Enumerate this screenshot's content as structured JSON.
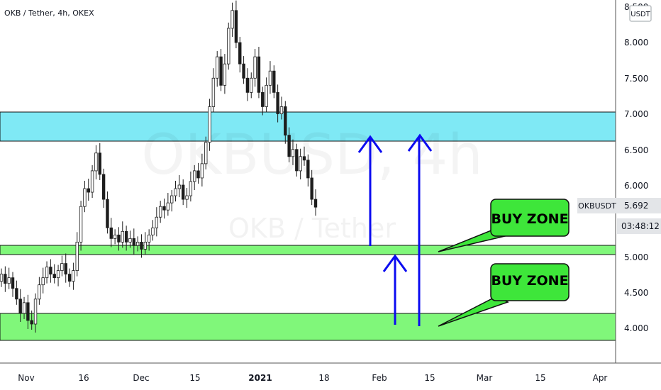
{
  "header": {
    "title": "OKB / Tether, 4h, OKEX"
  },
  "watermark": {
    "symbol": "OKBUSD, 4h",
    "pair": "OKB / Tether"
  },
  "price_axis": {
    "currency": "USDT",
    "top_partial": "8.500",
    "ticks": [
      "8.000",
      "7.500",
      "7.000",
      "6.500",
      "6.000",
      "5.000",
      "4.500",
      "4.000"
    ]
  },
  "price_tag": {
    "symbol": "OKBUSDT",
    "price": "5.692",
    "countdown": "03:48:12"
  },
  "time_axis": {
    "labels": [
      "Nov",
      "16",
      "Dec",
      "15",
      "2021",
      "18",
      "Feb",
      "15",
      "Mar",
      "15",
      "Apr"
    ]
  },
  "annotations": {
    "buy_zone_1": "BUY ZONE",
    "buy_zone_2": "BUY ZONE"
  },
  "colors": {
    "cyan_zone": "#7fe9f5",
    "green_zone": "#80f77a",
    "arrow": "#0b0bf0",
    "callout": "#3ee63a",
    "candle": "#1d1d1d"
  },
  "chart_data": {
    "type": "candlestick",
    "title": "OKB / Tether, 4h, OKEX",
    "ylim": [
      3.75,
      8.6
    ],
    "zones": [
      {
        "kind": "resistance",
        "from": 6.62,
        "to": 7.03
      },
      {
        "kind": "buy",
        "label": "BUY ZONE",
        "from": 5.03,
        "to": 5.16
      },
      {
        "kind": "buy",
        "label": "BUY ZONE",
        "from": 3.82,
        "to": 4.2
      }
    ],
    "series": [
      {
        "values": [
          [
            4.65,
            4.75
          ],
          [
            4.75,
            4.62
          ],
          [
            4.62,
            4.7
          ],
          [
            4.7,
            4.55
          ],
          [
            4.55,
            4.4
          ],
          [
            4.4,
            4.2
          ],
          [
            4.2,
            4.35
          ],
          [
            4.35,
            4.1
          ],
          [
            4.1,
            4.05
          ],
          [
            4.05,
            4.4
          ],
          [
            4.4,
            4.6
          ],
          [
            4.6,
            4.7
          ],
          [
            4.7,
            4.85
          ],
          [
            4.85,
            4.75
          ],
          [
            4.75,
            4.7
          ],
          [
            4.7,
            4.8
          ],
          [
            4.8,
            4.9
          ],
          [
            4.9,
            4.75
          ],
          [
            4.75,
            4.65
          ],
          [
            4.65,
            4.8
          ],
          [
            4.8,
            5.2
          ],
          [
            5.2,
            5.7
          ],
          [
            5.7,
            5.95
          ],
          [
            5.95,
            5.9
          ],
          [
            5.9,
            6.2
          ],
          [
            6.2,
            6.45
          ],
          [
            6.45,
            6.15
          ],
          [
            6.15,
            5.8
          ],
          [
            5.8,
            5.4
          ],
          [
            5.4,
            5.25
          ],
          [
            5.25,
            5.3
          ],
          [
            5.3,
            5.2
          ],
          [
            5.2,
            5.35
          ],
          [
            5.35,
            5.2
          ],
          [
            5.2,
            5.25
          ],
          [
            5.25,
            5.15
          ],
          [
            5.15,
            5.2
          ],
          [
            5.2,
            5.1
          ],
          [
            5.1,
            5.2
          ],
          [
            5.2,
            5.3
          ],
          [
            5.3,
            5.4
          ],
          [
            5.4,
            5.55
          ],
          [
            5.55,
            5.7
          ],
          [
            5.7,
            5.65
          ],
          [
            5.65,
            5.75
          ],
          [
            5.75,
            5.85
          ],
          [
            5.85,
            5.95
          ],
          [
            5.95,
            6.0
          ],
          [
            6.0,
            5.8
          ],
          [
            5.8,
            5.85
          ],
          [
            5.85,
            6.05
          ],
          [
            6.05,
            6.2
          ],
          [
            6.2,
            6.1
          ],
          [
            6.1,
            6.3
          ],
          [
            6.3,
            6.6
          ],
          [
            6.6,
            7.1
          ],
          [
            7.1,
            7.5
          ],
          [
            7.5,
            7.8
          ],
          [
            7.8,
            7.4
          ],
          [
            7.4,
            7.7
          ],
          [
            7.7,
            8.2
          ],
          [
            8.2,
            8.45
          ],
          [
            8.45,
            8.0
          ],
          [
            8.0,
            7.7
          ],
          [
            7.7,
            7.5
          ],
          [
            7.5,
            7.3
          ],
          [
            7.3,
            7.5
          ],
          [
            7.5,
            7.8
          ],
          [
            7.8,
            7.3
          ],
          [
            7.3,
            7.1
          ],
          [
            7.1,
            7.4
          ],
          [
            7.4,
            7.6
          ],
          [
            7.6,
            7.3
          ],
          [
            7.3,
            7.0
          ],
          [
            7.0,
            7.1
          ],
          [
            7.1,
            6.7
          ],
          [
            6.7,
            6.4
          ],
          [
            6.4,
            6.5
          ],
          [
            6.5,
            6.2
          ],
          [
            6.2,
            6.4
          ],
          [
            6.4,
            6.35
          ],
          [
            6.35,
            6.1
          ],
          [
            6.1,
            5.8
          ],
          [
            5.8,
            5.69
          ]
        ]
      }
    ]
  }
}
